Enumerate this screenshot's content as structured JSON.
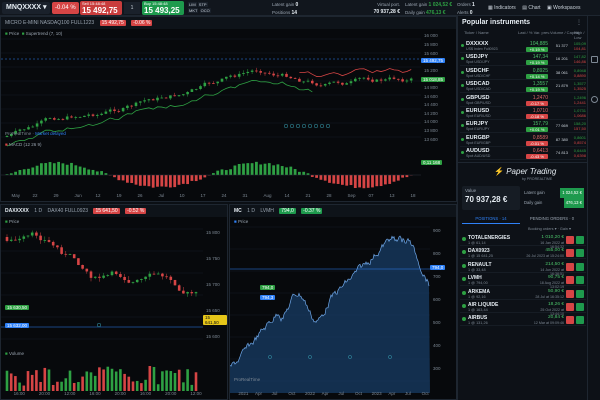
{
  "topbar": {
    "symbol": "MNQXXXX",
    "change": "-0.04 %",
    "sell_label": "Sell 15:48:48",
    "sell_price": "15 492,75",
    "qty": "1",
    "buy_label": "Buy 15:48:48",
    "buy_price": "15 493,25",
    "order_types": [
      "LIM",
      "STP",
      "MKT",
      "OCO"
    ],
    "stats": [
      {
        "label": "Latent gain",
        "value": "0"
      },
      {
        "label": "Positions",
        "value": "14"
      }
    ],
    "virtual_port_label": "Virtual port.",
    "virtual_port_value": "70 937,28 €",
    "latent_gain_label": "Latent gain",
    "latent_gain_value": "1 024,52 €",
    "daily_gain_label": "Daily gain",
    "daily_gain_value": "476,13 €",
    "orders_label": "Orders",
    "orders_value": "1",
    "alerts_label": "Alerts",
    "alerts_value": "0",
    "tabs": [
      "Indicators",
      "Chart",
      "Workspaces"
    ]
  },
  "main_chart": {
    "header": "MICRO E-MINI NASDAQ100 FULL1223",
    "header_price": "15 492,75",
    "header_change": "-0.06 %",
    "legend_price": "Price",
    "legend_super": "Supertrend (7, 10)",
    "prorealtime": "ProRealTime",
    "status": "Market delayed",
    "y_ticks": [
      "16 000",
      "15 800",
      "15 600",
      "15 400",
      "15 200",
      "15 000",
      "14 800",
      "14 600",
      "14 400",
      "14 200",
      "14 000",
      "13 800",
      "13 600"
    ],
    "current_price": "15 492,75",
    "super_price": "15 018,85",
    "macd_label": "MACD (12 26 9)",
    "macd_value": "0,11 168",
    "x_ticks": [
      "May",
      "22",
      "29",
      "Jun",
      "12",
      "19",
      "26",
      "Jul",
      "10",
      "17",
      "24",
      "31",
      "Aug",
      "14",
      "21",
      "28",
      "Sep",
      "07",
      "13",
      "18"
    ]
  },
  "dax_chart": {
    "symbol": "DAXXXXX",
    "interval": "1 D",
    "header": "DAX40 FULL0923",
    "header_price": "15 641,50",
    "header_change": "-0.52 %",
    "legend_price": "Price",
    "bid": "15 630,50",
    "ask": "15 632,00",
    "current_price": "15 641,50",
    "y_ticks": [
      "15 800",
      "15 750",
      "15 700",
      "15 650",
      "15 600"
    ],
    "volume_label": "Volume",
    "x_ticks": [
      "16:00",
      "20:00",
      "12:00",
      "16:00",
      "20:00",
      "16:00",
      "20:00",
      "12:00"
    ]
  },
  "mc_chart": {
    "symbol": "MC",
    "interval": "1 D",
    "header": "LVMH",
    "header_price": "794,0",
    "header_change": "-0.37 %",
    "legend_price": "Price",
    "bid": "794,0",
    "ask": "794,3",
    "current_price": "794,0",
    "prorealtime": "ProRealTime",
    "y_ticks": [
      "900",
      "800",
      "700",
      "600",
      "500",
      "400",
      "300"
    ],
    "x_ticks": [
      "2021",
      "Apr",
      "Jul",
      "Oct",
      "2022",
      "Apr",
      "Jul",
      "Oct",
      "2023",
      "Apr",
      "Jul",
      "Oct"
    ]
  },
  "instruments": {
    "title": "Popular instruments",
    "cols": [
      "Ticker / Name",
      "Last / % Var. prev.",
      "Volume / Capital",
      "High / Low"
    ],
    "rows": [
      {
        "ticker": "DXXXXX",
        "name": "US$ Index Full0923",
        "price": "104,885",
        "change": "+0.19 %",
        "up": true,
        "vol": "51 377",
        "high": "105,09",
        "low": "104,81"
      },
      {
        "ticker": "USDJPY",
        "name": "Spot USD/JPY",
        "price": "147,34",
        "change": "+0.19 %",
        "up": true,
        "vol": "16 201",
        "high": "147,82",
        "low": "146,86"
      },
      {
        "ticker": "USDCHF",
        "name": "Spot USD/CHF",
        "price": "0,8925",
        "change": "+0.14 %",
        "up": true,
        "vol": "38 061",
        "high": "0,8948",
        "low": "0,8890"
      },
      {
        "ticker": "USDCAD",
        "name": "Spot USD/CAD",
        "price": "1,3557",
        "change": "+0.19 %",
        "up": true,
        "vol": "21 879",
        "high": "1,3577",
        "low": "1,3525"
      },
      {
        "ticker": "GBPUSD",
        "name": "Spot GBP/USD",
        "price": "1,2470",
        "change": "-0.17 %",
        "up": false,
        "vol": "",
        "high": "1,2496",
        "low": "1,2441"
      },
      {
        "ticker": "EURUSD",
        "name": "Spot EUR/USD",
        "price": "1,0710",
        "change": "-0.18 %",
        "up": false,
        "vol": "",
        "high": "1,0731",
        "low": "1,0686"
      },
      {
        "ticker": "EURJPY",
        "name": "Spot EUR/JPY",
        "price": "157,79",
        "change": "+0.01 %",
        "up": true,
        "vol": "77 669",
        "high": "158,20",
        "low": "157,50"
      },
      {
        "ticker": "EURGBP",
        "name": "Spot EUR/GBP",
        "price": "0,8589",
        "change": "-0.01 %",
        "up": false,
        "vol": "87 380",
        "high": "0,8601",
        "low": "0,8574"
      },
      {
        "ticker": "AUDUSD",
        "name": "Spot AUD/USD",
        "price": "0,6413",
        "change": "-0.43 %",
        "up": false,
        "vol": "74 813",
        "high": "0,6445",
        "low": "0,6398"
      }
    ]
  },
  "paper": {
    "title": "Paper Trading",
    "subtitle": "by PROREALTIME",
    "value_label": "Value",
    "value": "70 937,28 €",
    "latent_label": "Latent gain",
    "latent": "1 024,52 €",
    "daily_label": "Daily gain",
    "daily": "476,13 €",
    "tab_positions": "POSITIONS · 14",
    "tab_pending": "PENDING ORDERS · 0",
    "sort_label": "Booking orders",
    "gain_label": "Gain",
    "positions": [
      {
        "name": "TOTALENERGIES",
        "sub": "1 @ 61,14",
        "value": "1 010,20 €",
        "date": "16 Jan 2022 at 16:54:32",
        "up": true
      },
      {
        "name": "DAX0923",
        "sub": "1 @ 15 641,25",
        "value": "455,00 €",
        "date": "26 Jul 2023 at 15:24:00",
        "up": true
      },
      {
        "name": "RENAULT",
        "sub": "1 @ 33,48",
        "value": "214,50 €",
        "date": "14 Jun 2022 at 16:38:51",
        "up": true
      },
      {
        "name": "LVMH",
        "sub": "1 @ 794,00",
        "value": "90,75 €",
        "date": "18 Aug 2022 at 13:02:19",
        "up": true
      },
      {
        "name": "ARKEMA",
        "sub": "1 @ 92,16",
        "value": "50,90 €",
        "date": "28 Jul at 16:35:12",
        "up": true
      },
      {
        "name": "AIR LIQUIDE",
        "sub": "1 @ 163,44",
        "value": "18,26 €",
        "date": "25 Oct 2022 at 13:44:10",
        "up": true
      },
      {
        "name": "AIRBUS",
        "sub": "1 @ 131,26",
        "value": "20,84 €",
        "date": "12 Mar at 09:09:46",
        "up": true
      }
    ]
  },
  "colors": {
    "up": "#2ea043",
    "down": "#d64545",
    "accent": "#2f81f7"
  }
}
